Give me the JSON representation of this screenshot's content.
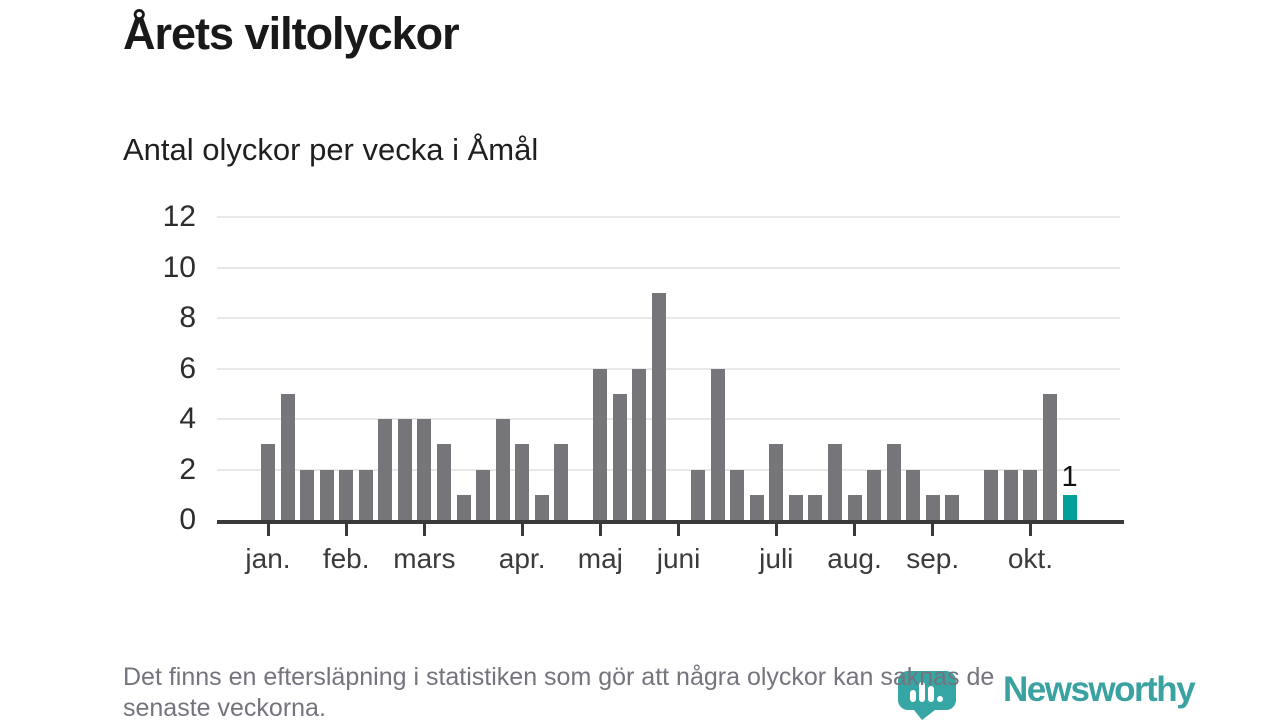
{
  "header": {
    "title": "Årets viltolyckor",
    "subtitle": "Antal olyckor per vecka i Åmål"
  },
  "footnote": {
    "line1": "Det finns en eftersläpning i statistiken som gör att några olyckor kan saknas de",
    "line2": "senaste veckorna."
  },
  "logo": {
    "brand": "Newsworthy",
    "icon": "bar-chart-pin-icon",
    "color": "#3aa2a0"
  },
  "chart_data": {
    "type": "bar",
    "title": "Årets viltolyckor",
    "subtitle": "Antal olyckor per vecka i Åmål",
    "x_unit": "week",
    "values": [
      3,
      5,
      2,
      2,
      2,
      2,
      4,
      4,
      4,
      3,
      1,
      2,
      4,
      3,
      1,
      3,
      0,
      6,
      5,
      6,
      9,
      0,
      2,
      6,
      2,
      1,
      3,
      1,
      1,
      3,
      1,
      2,
      3,
      2,
      1,
      1,
      0,
      2,
      2,
      2,
      5,
      1
    ],
    "month_ticks": [
      {
        "label": "jan.",
        "week_index": 0
      },
      {
        "label": "feb.",
        "week_index": 4
      },
      {
        "label": "mars",
        "week_index": 8
      },
      {
        "label": "apr.",
        "week_index": 13
      },
      {
        "label": "maj",
        "week_index": 17
      },
      {
        "label": "juni",
        "week_index": 21
      },
      {
        "label": "juli",
        "week_index": 26
      },
      {
        "label": "aug.",
        "week_index": 30
      },
      {
        "label": "sep.",
        "week_index": 34
      },
      {
        "label": "okt.",
        "week_index": 39
      }
    ],
    "y_ticks": [
      0,
      2,
      4,
      6,
      8,
      10,
      12
    ],
    "ylim": [
      0,
      12
    ],
    "grid": true,
    "legend": "none",
    "bar_color": "#76757a",
    "highlight_color": "#00a09b",
    "highlight_index": 41,
    "highlight_label": "1"
  }
}
